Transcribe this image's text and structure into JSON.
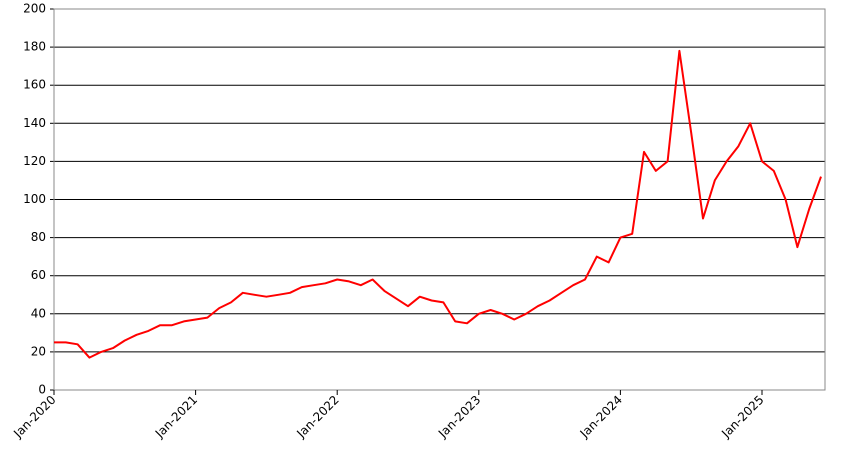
{
  "chart_data": {
    "type": "line",
    "x": [
      "2020-01",
      "2020-02",
      "2020-03",
      "2020-04",
      "2020-05",
      "2020-06",
      "2020-07",
      "2020-08",
      "2020-09",
      "2020-10",
      "2020-11",
      "2020-12",
      "2021-01",
      "2021-02",
      "2021-03",
      "2021-04",
      "2021-05",
      "2021-06",
      "2021-07",
      "2021-08",
      "2021-09",
      "2021-10",
      "2021-11",
      "2021-12",
      "2022-01",
      "2022-02",
      "2022-03",
      "2022-04",
      "2022-05",
      "2022-06",
      "2022-07",
      "2022-08",
      "2022-09",
      "2022-10",
      "2022-11",
      "2022-12",
      "2023-01",
      "2023-02",
      "2023-03",
      "2023-04",
      "2023-05",
      "2023-06",
      "2023-07",
      "2023-08",
      "2023-09",
      "2023-10",
      "2023-11",
      "2023-12",
      "2024-01",
      "2024-02",
      "2024-03",
      "2024-04",
      "2024-05",
      "2024-06",
      "2024-07",
      "2024-08",
      "2024-09",
      "2024-10",
      "2024-11",
      "2024-12",
      "2025-01",
      "2025-02",
      "2025-03",
      "2025-04",
      "2025-05",
      "2025-06"
    ],
    "series": [
      {
        "color": "#ff0000",
        "values": [
          25,
          25,
          24,
          17,
          20,
          22,
          26,
          29,
          31,
          34,
          34,
          36,
          37,
          38,
          43,
          46,
          51,
          50,
          49,
          50,
          51,
          54,
          55,
          56,
          58,
          57,
          55,
          58,
          52,
          48,
          44,
          49,
          47,
          46,
          36,
          35,
          40,
          42,
          40,
          37,
          40,
          44,
          47,
          51,
          55,
          58,
          70,
          67,
          80,
          82,
          125,
          115,
          120,
          178,
          135,
          90,
          110,
          120,
          128,
          140,
          120,
          115,
          100,
          75,
          95,
          112
        ]
      }
    ],
    "xlim": [
      "2020-01",
      "2025-06"
    ],
    "xticks": [
      {
        "value": "2020-01",
        "label": "Jan-2020"
      },
      {
        "value": "2021-01",
        "label": "Jan-2021"
      },
      {
        "value": "2022-01",
        "label": "Jan-2022"
      },
      {
        "value": "2023-01",
        "label": "Jan-2023"
      },
      {
        "value": "2024-01",
        "label": "Jan-2024"
      },
      {
        "value": "2025-01",
        "label": "Jan-2025"
      }
    ],
    "ylim": [
      0,
      200
    ],
    "yticks": [
      0,
      20,
      40,
      60,
      80,
      100,
      120,
      140,
      160,
      180,
      200
    ],
    "grid": true
  }
}
